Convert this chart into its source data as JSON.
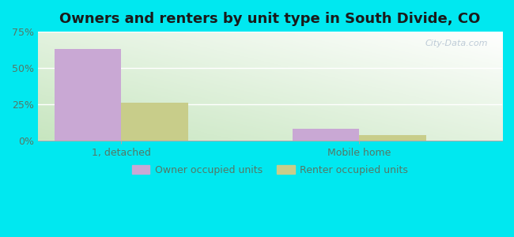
{
  "title": "Owners and renters by unit type in South Divide, CO",
  "categories": [
    "1, detached",
    "Mobile home"
  ],
  "owner_values": [
    63.0,
    8.0
  ],
  "renter_values": [
    26.0,
    4.0
  ],
  "owner_color": "#c9a8d4",
  "renter_color": "#c8cd8a",
  "ylim": [
    0,
    75
  ],
  "yticks": [
    0,
    25,
    50,
    75
  ],
  "ytick_labels": [
    "0%",
    "25%",
    "50%",
    "75%"
  ],
  "background_outer": "#00e8f0",
  "legend_owner": "Owner occupied units",
  "legend_renter": "Renter occupied units",
  "bar_width": 0.28,
  "title_fontsize": 13,
  "label_fontsize": 9,
  "tick_fontsize": 9,
  "watermark": "City-Data.com",
  "tick_color": "#557766",
  "grid_color": "#ffffff",
  "bg_color_bottom_left": "#c8e6c0",
  "bg_color_top_right": "#eaf5f0"
}
